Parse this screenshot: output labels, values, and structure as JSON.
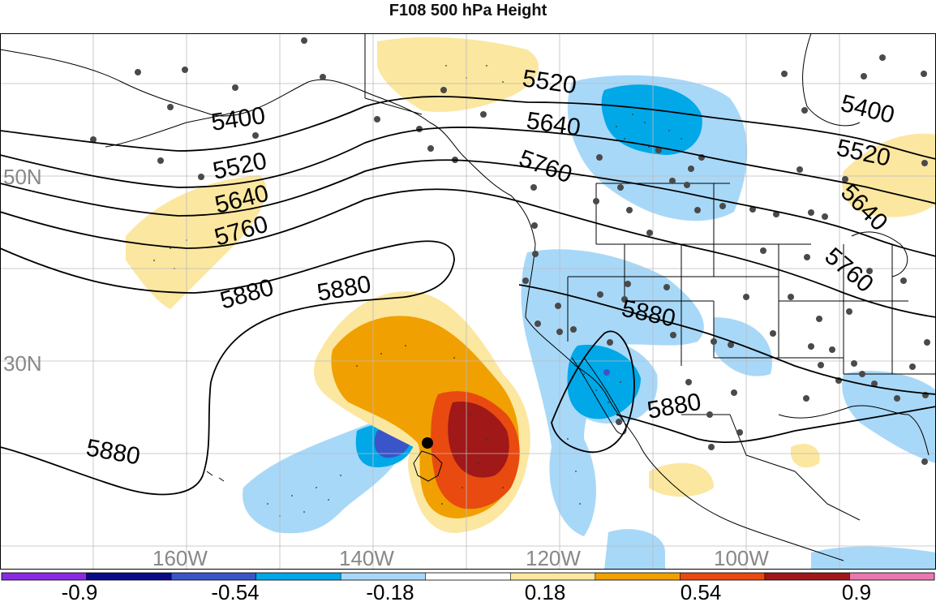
{
  "title": "F108 500 hPa Height",
  "lat_labels": [
    "50N",
    "30N"
  ],
  "lon_labels": [
    "160W",
    "140W",
    "120W",
    "100W"
  ],
  "contour_labels": [
    "5400",
    "5520",
    "5640",
    "5760",
    "5880",
    "5880",
    "5880",
    "5880",
    "5880",
    "5520",
    "5640",
    "5760",
    "5400",
    "5520",
    "5640",
    "5760"
  ],
  "colorbar": {
    "colors": [
      "#8a2be2",
      "#0a0a8a",
      "#3a55c8",
      "#00a8e8",
      "#a8d8f8",
      "#ffffff",
      "#fbe7a0",
      "#f0a000",
      "#e84a10",
      "#a01818",
      "#e878b0"
    ],
    "tick_labels": [
      "-0.9",
      "-0.54",
      "-0.18",
      "0.18",
      "0.54",
      "0.9"
    ]
  },
  "colors": {
    "land_outline": "#000000",
    "station_dot": "#4a4a4a",
    "grid": "#bbbbbb",
    "label_gray": "#888888"
  }
}
